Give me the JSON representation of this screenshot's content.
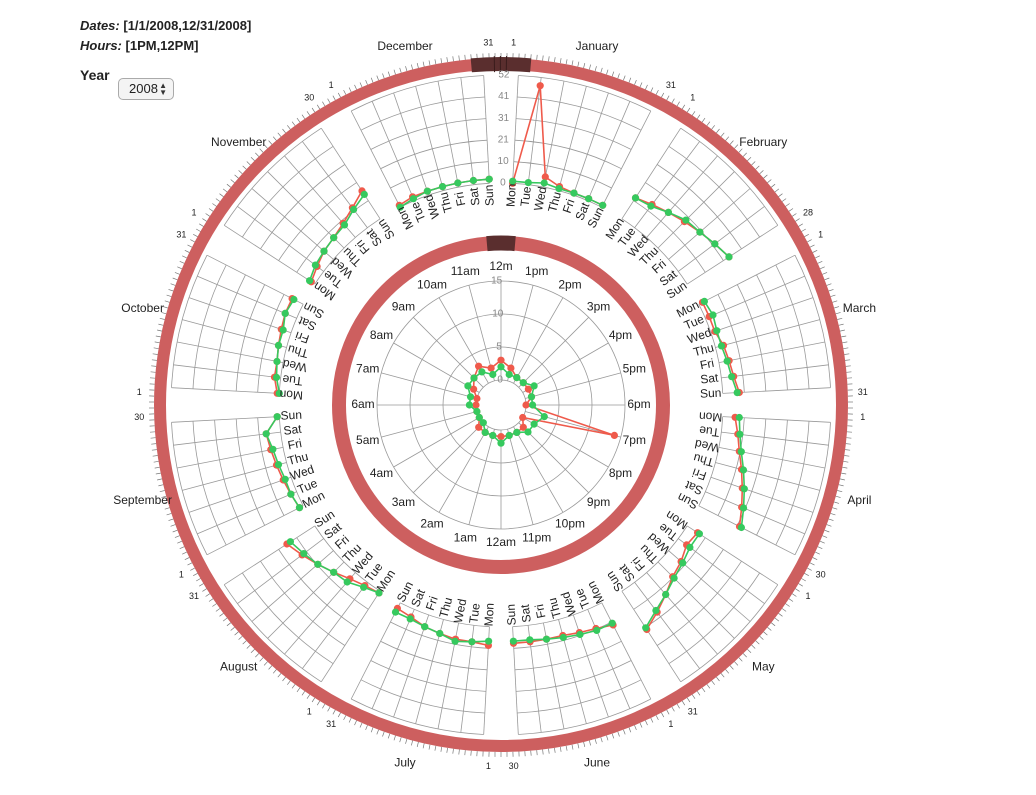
{
  "header": {
    "dates_label": "Dates:",
    "dates_value": "[1/1/2008,12/31/2008]",
    "hours_label": "Hours:",
    "hours_value": "[1PM,12PM]"
  },
  "year_control": {
    "label": "Year",
    "selected": "2008"
  },
  "colors": {
    "ring": "#cd5f5f",
    "selection": "#5a2e2e",
    "series_red": "#ef5a4b",
    "series_green": "#36c95e",
    "grid": "#999999",
    "text": "#222222"
  },
  "chart_data": [
    {
      "type": "radial-line",
      "name": "monthly-by-weekday",
      "months": [
        "January",
        "February",
        "March",
        "April",
        "May",
        "June",
        "July",
        "August",
        "September",
        "October",
        "November",
        "December"
      ],
      "weekdays": [
        "Mon",
        "Tue",
        "Wed",
        "Thu",
        "Fri",
        "Sat",
        "Sun"
      ],
      "radial_ticks": [
        "0",
        "10",
        "21",
        "31",
        "41",
        "52"
      ],
      "radial_range": [
        0,
        52
      ],
      "outer_ring_day_labels": [
        {
          "month": "January",
          "first": "1",
          "last": "31"
        },
        {
          "month": "February",
          "first": "1",
          "last": "28"
        },
        {
          "month": "March",
          "first": "1",
          "last": "31"
        },
        {
          "month": "April",
          "first": "1",
          "last": "30"
        },
        {
          "month": "May",
          "first": "1",
          "last": "31"
        },
        {
          "month": "June",
          "first": "1",
          "last": "30"
        },
        {
          "month": "July",
          "first": "1",
          "last": "31"
        },
        {
          "month": "August",
          "first": "1",
          "last": "31"
        },
        {
          "month": "September",
          "first": "1",
          "last": "30"
        },
        {
          "month": "October",
          "first": "1",
          "last": "31"
        },
        {
          "month": "November",
          "first": "1",
          "last": "30"
        },
        {
          "month": "December",
          "first": "1",
          "last": "31"
        }
      ],
      "series": [
        {
          "color": "red",
          "values": [
            [
              0,
              48,
              5,
              2,
              1,
              1,
              1
            ],
            [
              12,
              14,
              16,
              18,
              20,
              22,
              24
            ],
            [
              2,
              2,
              2,
              4,
              5,
              6,
              8
            ],
            [
              6,
              8,
              10,
              13,
              16,
              19,
              22
            ],
            [
              6,
              5,
              8,
              10,
              14,
              18,
              22
            ],
            [
              12,
              10,
              9,
              8,
              8,
              8,
              8
            ],
            [
              9,
              8,
              8,
              7,
              6,
              4,
              3
            ],
            [
              1,
              2,
              4,
              7,
              10,
              13,
              16
            ],
            [
              2,
              3,
              4,
              5,
              6,
              7,
              1
            ],
            [
              1,
              3,
              3,
              4,
              5,
              6,
              6
            ],
            [
              2,
              4,
              6,
              7,
              9,
              12,
              16
            ],
            [
              1,
              2,
              2,
              2,
              2,
              2,
              2
            ]
          ]
        },
        {
          "color": "green",
          "values": [
            [
              1,
              1,
              2,
              1,
              1,
              1,
              1
            ],
            [
              12,
              13,
              16,
              19,
              20,
              22,
              24
            ],
            [
              3,
              4,
              3,
              3,
              4,
              5,
              7
            ],
            [
              8,
              9,
              11,
              14,
              17,
              20,
              23
            ],
            [
              7,
              7,
              9,
              11,
              14,
              17,
              21
            ],
            [
              11,
              11,
              10,
              9,
              8,
              7,
              7
            ],
            [
              7,
              8,
              9,
              7,
              6,
              5,
              5
            ],
            [
              1,
              3,
              6,
              7,
              10,
              12,
              14
            ],
            [
              2,
              3,
              3,
              4,
              5,
              7,
              1
            ],
            [
              0,
              2,
              3,
              4,
              4,
              6,
              5
            ],
            [
              3,
              5,
              6,
              7,
              8,
              11,
              14
            ],
            [
              0,
              1,
              2,
              2,
              2,
              2,
              2
            ]
          ]
        }
      ]
    },
    {
      "type": "radial-line",
      "name": "hourly",
      "hours": [
        "12m",
        "1pm",
        "2pm",
        "3pm",
        "4pm",
        "5pm",
        "6pm",
        "7pm",
        "8pm",
        "9pm",
        "10pm",
        "11pm",
        "12am",
        "1am",
        "2am",
        "3am",
        "4am",
        "5am",
        "6am",
        "7am",
        "8am",
        "9am",
        "10am",
        "11am"
      ],
      "radial_ticks": [
        "0",
        "5",
        "10",
        "15"
      ],
      "radial_range": [
        0,
        15
      ],
      "series": [
        {
          "color": "red",
          "values": [
            3,
            2,
            1,
            1,
            1,
            1,
            0,
            14,
            0,
            1,
            1,
            1,
            1,
            1,
            1,
            1,
            0,
            0,
            0,
            0,
            1,
            2,
            3,
            2
          ]
        },
        {
          "color": "green",
          "values": [
            2,
            1,
            1,
            1,
            2,
            1,
            1,
            3,
            2,
            2,
            1,
            1,
            2,
            1,
            1,
            0,
            0,
            0,
            1,
            1,
            2,
            2,
            2,
            1
          ]
        }
      ]
    }
  ]
}
